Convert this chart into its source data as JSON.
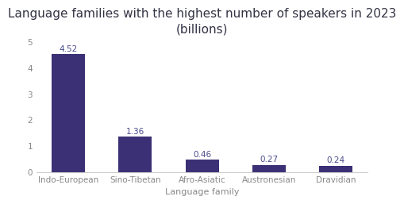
{
  "title": "Language families with the highest number of speakers in 2023\n(billions)",
  "categories": [
    "Indo-European",
    "Sino-Tibetan",
    "Afro-Asiatic",
    "Austronesian",
    "Dravidian"
  ],
  "values": [
    4.52,
    1.36,
    0.46,
    0.27,
    0.24
  ],
  "bar_color": "#3b3075",
  "xlabel": "Language family",
  "ylim": [
    0,
    5
  ],
  "yticks": [
    0,
    1,
    2,
    3,
    4,
    5
  ],
  "background_color": "#ffffff",
  "title_fontsize": 11,
  "label_fontsize": 8,
  "tick_fontsize": 7.5,
  "annotation_fontsize": 7.5,
  "annotation_color": "#4a4a8a"
}
